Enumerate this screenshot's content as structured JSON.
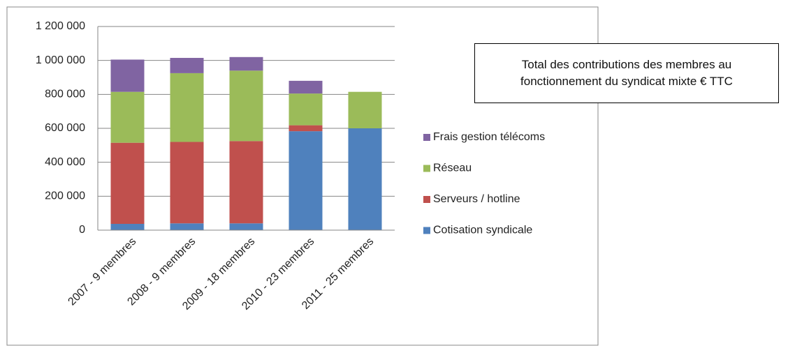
{
  "chart_data": {
    "type": "stacked_bar",
    "title": "Total des contributions des membres au fonctionnement du syndicat mixte € TTC",
    "categories": [
      "2007 - 9 membres",
      "2008 - 9 membres",
      "2009 - 18 membres",
      "2010 - 23 membres",
      "2011 - 25 membres"
    ],
    "series": [
      {
        "name": "Cotisation syndicale",
        "color": "#4f81bd",
        "values": [
          37000,
          40000,
          40000,
          583000,
          600000
        ]
      },
      {
        "name": "Serveurs / hotline",
        "color": "#c0504d",
        "values": [
          478000,
          480000,
          485000,
          35000,
          0
        ]
      },
      {
        "name": "Réseau",
        "color": "#9bbb59",
        "values": [
          300000,
          405000,
          415000,
          187000,
          215000
        ]
      },
      {
        "name": "Frais gestion télécoms",
        "color": "#8064a2",
        "values": [
          190000,
          90000,
          80000,
          75000,
          0
        ]
      }
    ],
    "ylim": [
      0,
      1200000
    ],
    "yticks": [
      0,
      {
        "value": 200000,
        "label": "200 000"
      },
      {
        "value": 400000,
        "label": "400 000"
      },
      {
        "value": 600000,
        "label": "600 000"
      },
      {
        "value": 800000,
        "label": "800 000"
      },
      {
        "value": 1000000,
        "label": "1 000 000"
      },
      {
        "value": 1200000,
        "label": "1 200 000"
      }
    ],
    "grid": true,
    "legend": "right"
  }
}
